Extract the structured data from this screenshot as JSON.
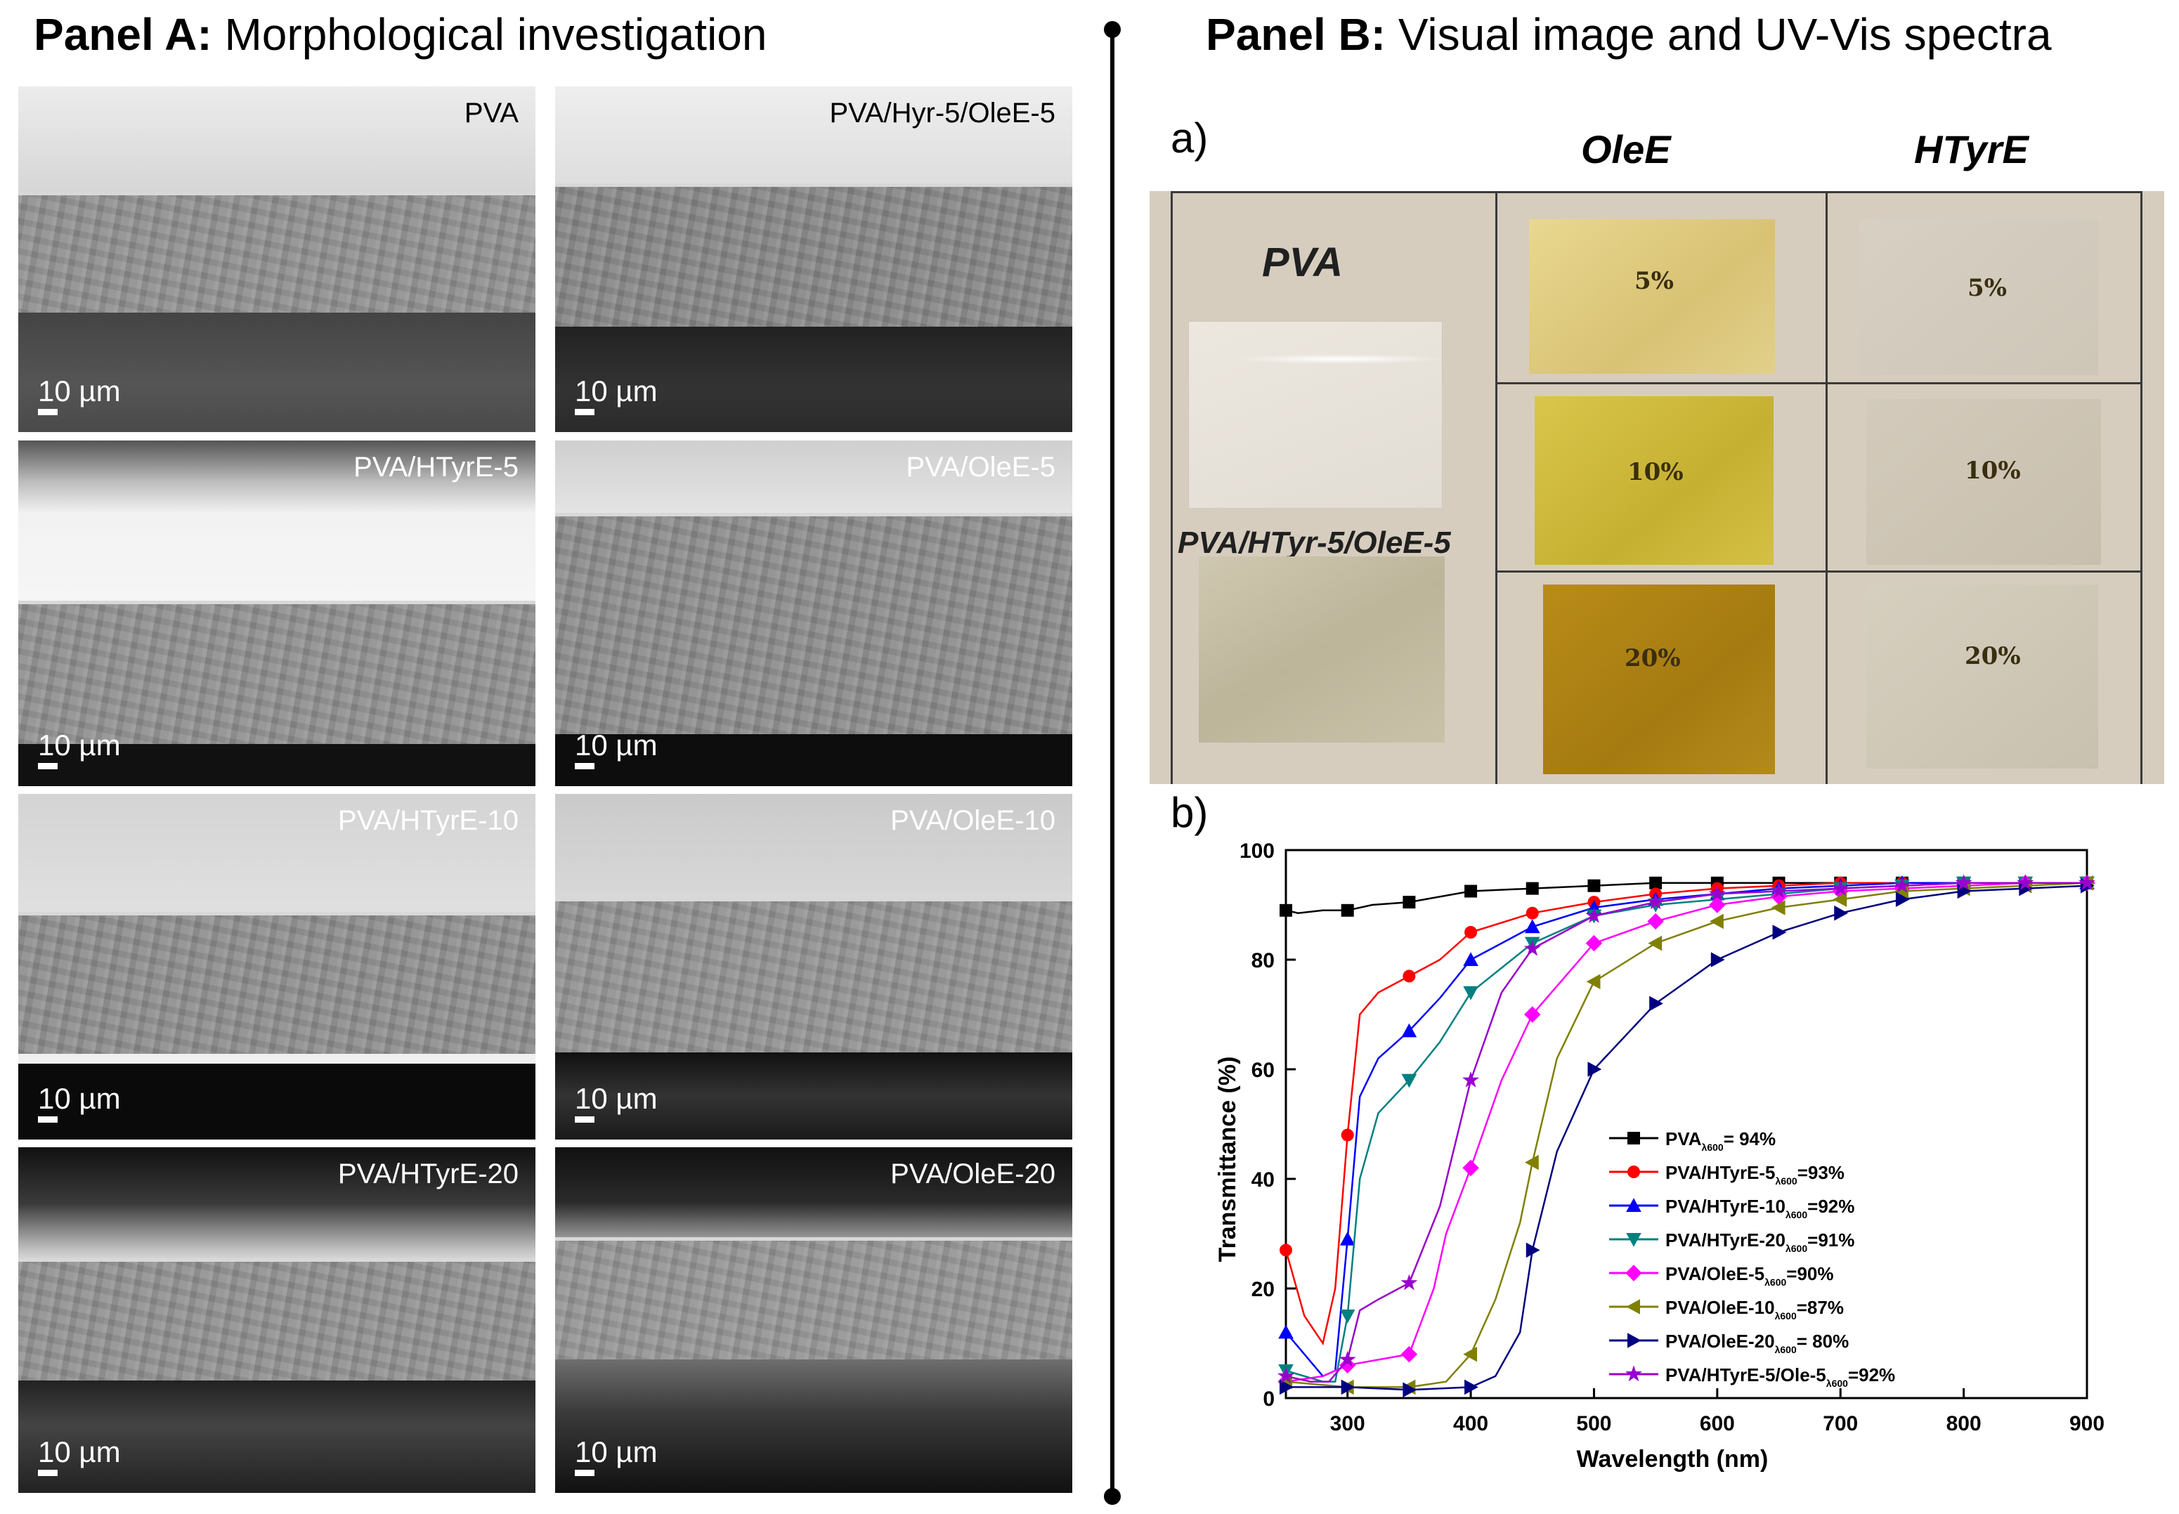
{
  "panel_a": {
    "title_bold": "Panel A:",
    "title_rest": " Morphological investigation",
    "images": [
      {
        "label": "PVA",
        "scale": "10 µm"
      },
      {
        "label": "PVA/Hyr-5/OleE-5",
        "scale": "10 µm"
      },
      {
        "label": "PVA/HTyrE-5",
        "scale": "10 µm"
      },
      {
        "label": "PVA/OleE-5",
        "scale": "10 µm"
      },
      {
        "label": "PVA/HTyrE-10",
        "scale": "10 µm"
      },
      {
        "label": "PVA/OleE-10",
        "scale": "10 µm"
      },
      {
        "label": "PVA/HTyrE-20",
        "scale": "10 µm"
      },
      {
        "label": "PVA/OleE-20",
        "scale": "10 µm"
      }
    ]
  },
  "panel_b": {
    "title_bold": "Panel B:",
    "title_rest": " Visual image and UV-Vis spectra",
    "sub_a": "a)",
    "sub_b": "b)",
    "photo": {
      "col_oleE": "OleE",
      "col_htyrE": "HTyrE",
      "pva_label": "PVA",
      "blend_label": "PVA/HTyr-5/OleE-5",
      "oleE_pcts": [
        "5%",
        "10%",
        "20%"
      ],
      "htyrE_pcts": [
        "5%",
        "10%",
        "20%"
      ]
    }
  },
  "chart_data": {
    "type": "line",
    "xlabel": "Wavelength (nm)",
    "ylabel": "Transmittance (%)",
    "xlim": [
      250,
      900
    ],
    "ylim": [
      0,
      100
    ],
    "xticks": [
      300,
      400,
      500,
      600,
      700,
      800,
      900
    ],
    "yticks": [
      0,
      20,
      40,
      60,
      80,
      100
    ],
    "legend_position": "lower-right",
    "series": [
      {
        "name": "PVA",
        "legend_main": "PVA",
        "legend_sub": "λ600",
        "legend_tail": "= 94%",
        "color": "#000000",
        "marker": "square",
        "x": [
          250,
          260,
          280,
          300,
          320,
          350,
          400,
          450,
          500,
          550,
          600,
          650,
          700,
          750,
          800,
          850,
          900
        ],
        "y": [
          89,
          88.5,
          89,
          89,
          90,
          90.5,
          92.5,
          93,
          93.5,
          94,
          94,
          94,
          94,
          94,
          94,
          94,
          94
        ]
      },
      {
        "name": "PVA/HTyrE-5",
        "legend_main": "PVA/HTyrE-5",
        "legend_sub": "λ600",
        "legend_tail": "=93%",
        "color": "#ff0000",
        "marker": "circle",
        "x": [
          250,
          265,
          280,
          290,
          300,
          310,
          325,
          350,
          375,
          400,
          450,
          500,
          550,
          600,
          650,
          700,
          750,
          800,
          850,
          900
        ],
        "y": [
          27,
          15,
          10,
          20,
          48,
          70,
          74,
          77,
          80,
          85,
          88.5,
          90.5,
          92,
          93,
          93.5,
          94,
          94,
          94,
          94,
          94
        ]
      },
      {
        "name": "PVA/HTyrE-10",
        "legend_main": "PVA/HTyrE-10",
        "legend_sub": "λ600",
        "legend_tail": "=92%",
        "color": "#0000ff",
        "marker": "triangle-up",
        "x": [
          250,
          265,
          280,
          290,
          300,
          310,
          325,
          350,
          375,
          400,
          450,
          500,
          550,
          600,
          650,
          700,
          750,
          800,
          850,
          900
        ],
        "y": [
          12,
          8,
          4,
          5,
          29,
          55,
          62,
          67,
          73,
          80,
          86,
          89.5,
          91,
          92,
          93,
          93.5,
          94,
          94,
          94,
          94
        ]
      },
      {
        "name": "PVA/HTyrE-20",
        "legend_main": "PVA/HTyrE-20",
        "legend_sub": "λ600",
        "legend_tail": "=91%",
        "color": "#008080",
        "marker": "triangle-down",
        "x": [
          250,
          280,
          290,
          300,
          310,
          325,
          350,
          375,
          400,
          450,
          500,
          550,
          600,
          650,
          700,
          750,
          800,
          850,
          900
        ],
        "y": [
          5,
          3,
          3,
          15,
          40,
          52,
          58,
          65,
          74,
          83,
          88,
          90,
          91,
          92,
          93,
          93.5,
          94,
          94,
          94
        ]
      },
      {
        "name": "PVA/OleE-5",
        "legend_main": "PVA/OleE-5",
        "legend_sub": "λ600",
        "legend_tail": "=90%",
        "color": "#ff00ff",
        "marker": "diamond",
        "x": [
          250,
          280,
          300,
          325,
          350,
          370,
          380,
          400,
          425,
          450,
          500,
          550,
          600,
          650,
          700,
          750,
          800,
          850,
          900
        ],
        "y": [
          3,
          4,
          6,
          7,
          8,
          20,
          30,
          42,
          58,
          70,
          83,
          87,
          90,
          91.5,
          92.5,
          93,
          93.5,
          94,
          94
        ]
      },
      {
        "name": "PVA/OleE-10",
        "legend_main": "PVA/OleE-10",
        "legend_sub": "λ600",
        "legend_tail": "=87%",
        "color": "#808000",
        "marker": "triangle-left",
        "x": [
          250,
          300,
          350,
          380,
          400,
          420,
          440,
          450,
          470,
          500,
          550,
          600,
          650,
          700,
          750,
          800,
          850,
          900
        ],
        "y": [
          3,
          2,
          2,
          3,
          8,
          18,
          32,
          43,
          62,
          76,
          83,
          87,
          89.5,
          91,
          92.5,
          93,
          93.5,
          94
        ]
      },
      {
        "name": "PVA/OleE-20",
        "legend_main": "PVA/OleE-20",
        "legend_sub": "λ600",
        "legend_tail": "= 80%",
        "color": "#000080",
        "marker": "triangle-right",
        "x": [
          250,
          300,
          350,
          400,
          420,
          440,
          450,
          470,
          500,
          550,
          600,
          650,
          700,
          750,
          800,
          850,
          900
        ],
        "y": [
          2,
          2,
          1.5,
          2,
          4,
          12,
          27,
          45,
          60,
          72,
          80,
          85,
          88.5,
          91,
          92.5,
          93,
          93.5
        ]
      },
      {
        "name": "PVA/HTyrE-5/Ole-5",
        "legend_main": "PVA/HTyrE-5/Ole-5",
        "legend_sub": "λ600",
        "legend_tail": "=92%",
        "color": "#9900cc",
        "marker": "star",
        "x": [
          250,
          270,
          285,
          300,
          310,
          325,
          350,
          375,
          400,
          425,
          450,
          500,
          550,
          600,
          650,
          700,
          750,
          800,
          850,
          900
        ],
        "y": [
          4,
          3,
          3,
          7,
          16,
          18,
          21,
          35,
          58,
          74,
          82,
          88,
          90.5,
          92,
          92.5,
          93,
          93.5,
          94,
          94,
          94
        ]
      }
    ]
  }
}
